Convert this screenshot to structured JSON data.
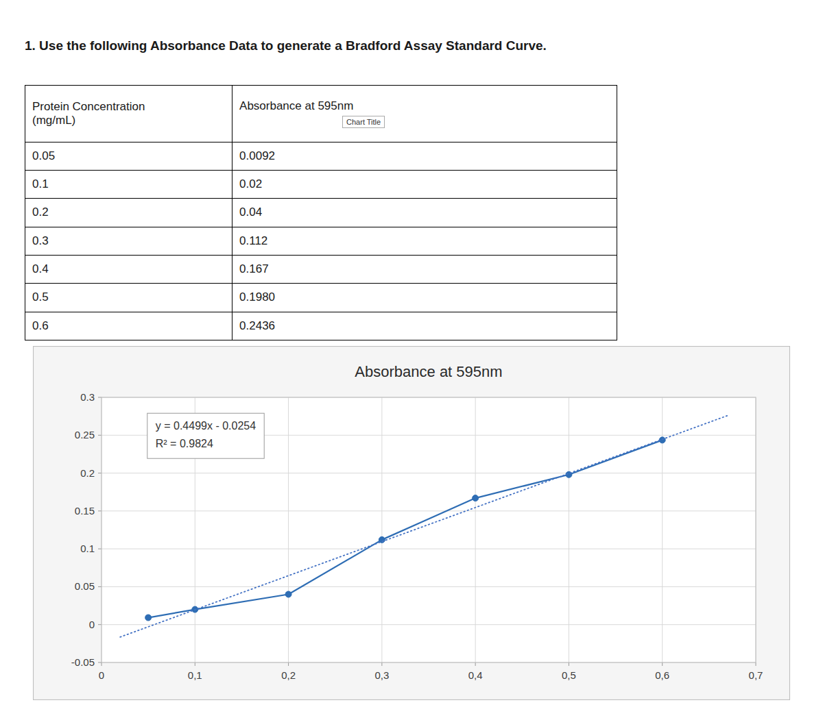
{
  "header": "1. Use the following Absorbance Data to generate a Bradford Assay Standard Curve.",
  "table": {
    "columns": [
      "Protein Concentration\n(mg/mL)",
      "Absorbance at 595nm"
    ],
    "overlay_text": "Chart Title",
    "rows": [
      [
        "0.05",
        "0.0092"
      ],
      [
        "0.1",
        "0.02"
      ],
      [
        "0.2",
        "0.04"
      ],
      [
        "0.3",
        "0.112"
      ],
      [
        "0.4",
        "0.167"
      ],
      [
        "0.5",
        "0.1980"
      ],
      [
        "0.6",
        "0.2436"
      ]
    ]
  },
  "chart_data": {
    "type": "line",
    "title": "Absorbance at 595nm",
    "series": [
      {
        "x": [
          0.05,
          0.1,
          0.2,
          0.3,
          0.4,
          0.5,
          0.6
        ],
        "values": [
          0.0092,
          0.02,
          0.04,
          0.112,
          0.167,
          0.198,
          0.2436
        ],
        "color": "#2E6DB4",
        "marker": "circle",
        "line_style": "solid"
      },
      {
        "x": [
          0.02,
          0.67
        ],
        "values": [
          -0.016402,
          0.276033
        ],
        "color": "#4472C4",
        "line_style": "dotted"
      }
    ],
    "annotations": [
      "y = 0.4499x - 0.0254",
      "R² = 0.9824"
    ],
    "xlim": [
      0,
      0.7
    ],
    "xticks": [
      0,
      {
        "value": 0.1,
        "label": "0,1"
      },
      {
        "value": 0.2,
        "label": "0,2"
      },
      {
        "value": 0.3,
        "label": "0,3"
      },
      {
        "value": 0.4,
        "label": "0,4"
      },
      {
        "value": 0.5,
        "label": "0,5"
      },
      {
        "value": 0.6,
        "label": "0,6"
      },
      {
        "value": 0.7,
        "label": "0,7"
      }
    ],
    "ylim": [
      -0.05,
      0.3
    ],
    "yticks": [
      -0.05,
      0,
      0.05,
      0.1,
      0.15,
      0.2,
      0.25,
      0.3
    ],
    "grid": true
  }
}
